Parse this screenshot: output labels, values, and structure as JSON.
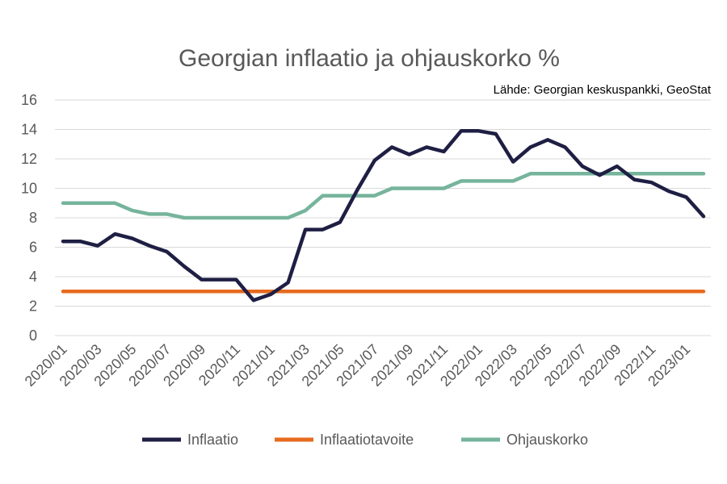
{
  "chart_data": {
    "type": "line",
    "title": "Georgian inflaatio ja ohjauskorko %",
    "subtitle": "Lähde: Georgian keskuspankki, GeoStat",
    "xlabel": "",
    "ylabel": "",
    "ylim": [
      0,
      16
    ],
    "yticks": [
      "0",
      "2",
      "4",
      "6",
      "8",
      "10",
      "12",
      "14",
      "16"
    ],
    "grid": true,
    "legend_position": "bottom",
    "x": [
      "2020/01",
      "2020/02",
      "2020/03",
      "2020/04",
      "2020/05",
      "2020/06",
      "2020/07",
      "2020/08",
      "2020/09",
      "2020/10",
      "2020/11",
      "2020/12",
      "2021/01",
      "2021/02",
      "2021/03",
      "2021/04",
      "2021/05",
      "2021/06",
      "2021/07",
      "2021/08",
      "2021/09",
      "2021/10",
      "2021/11",
      "2021/12",
      "2022/01",
      "2022/02",
      "2022/03",
      "2022/04",
      "2022/05",
      "2022/06",
      "2022/07",
      "2022/08",
      "2022/09",
      "2022/10",
      "2022/11",
      "2022/12",
      "2023/01",
      "2023/02"
    ],
    "xtick_labels": [
      "2020/01",
      "2020/03",
      "2020/05",
      "2020/07",
      "2020/09",
      "2020/11",
      "2021/01",
      "2021/03",
      "2021/05",
      "2021/07",
      "2021/09",
      "2021/11",
      "2022/01",
      "2022/03",
      "2022/05",
      "2022/07",
      "2022/09",
      "2022/11",
      "2023/01"
    ],
    "series": [
      {
        "name": "Inflaatio",
        "color": "#1f1f44",
        "values": [
          6.4,
          6.4,
          6.1,
          6.9,
          6.6,
          6.1,
          5.7,
          4.7,
          3.8,
          3.8,
          3.8,
          2.4,
          2.8,
          3.6,
          7.2,
          7.2,
          7.7,
          9.9,
          11.9,
          12.8,
          12.3,
          12.8,
          12.5,
          13.9,
          13.9,
          13.7,
          11.8,
          12.8,
          13.3,
          12.8,
          11.5,
          10.9,
          11.5,
          10.6,
          10.4,
          9.8,
          9.4,
          8.1
        ]
      },
      {
        "name": "Inflaatiotavoite",
        "color": "#e76a1e",
        "values": [
          3,
          3,
          3,
          3,
          3,
          3,
          3,
          3,
          3,
          3,
          3,
          3,
          3,
          3,
          3,
          3,
          3,
          3,
          3,
          3,
          3,
          3,
          3,
          3,
          3,
          3,
          3,
          3,
          3,
          3,
          3,
          3,
          3,
          3,
          3,
          3,
          3,
          3
        ]
      },
      {
        "name": "Ohjauskorko",
        "color": "#76b49c",
        "values": [
          9,
          9,
          9,
          9,
          8.5,
          8.25,
          8.25,
          8,
          8,
          8,
          8,
          8,
          8,
          8,
          8.5,
          9.5,
          9.5,
          9.5,
          9.5,
          10,
          10,
          10,
          10,
          10.5,
          10.5,
          10.5,
          10.5,
          11,
          11,
          11,
          11,
          11,
          11,
          11,
          11,
          11,
          11,
          11
        ]
      }
    ]
  }
}
